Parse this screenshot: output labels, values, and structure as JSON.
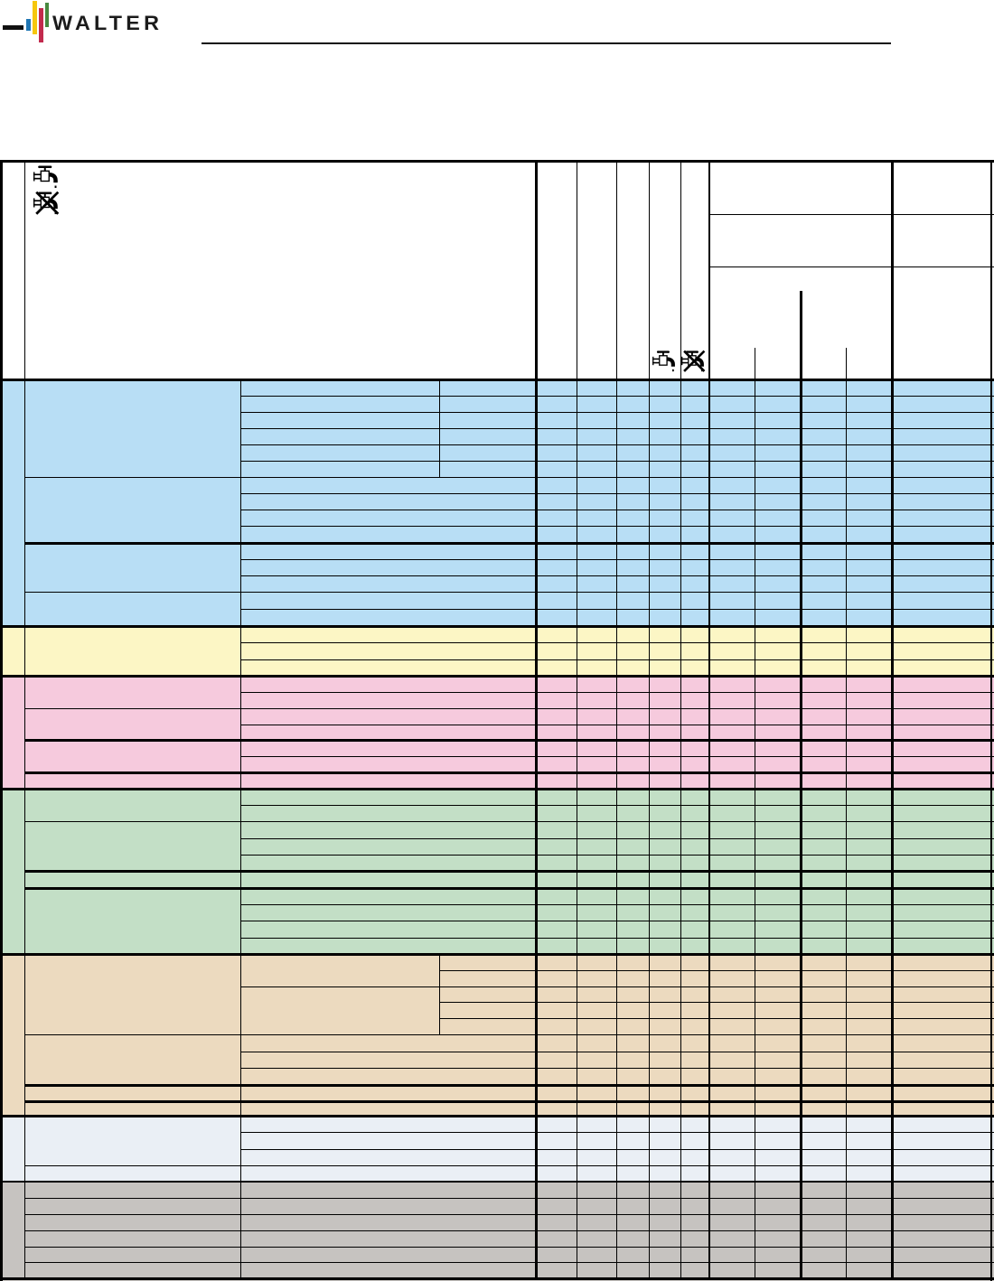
{
  "page": {
    "background": "#ffffff"
  },
  "logo": {
    "wordmark": "WALTER",
    "text_color": "#1b1b1b",
    "dash_color": "#111111",
    "bars": [
      {
        "name": "blue",
        "color": "#2076b4"
      },
      {
        "name": "yellow",
        "color": "#f6c70e"
      },
      {
        "name": "red",
        "color": "#c22a4d"
      },
      {
        "name": "green",
        "color": "#48883f"
      }
    ]
  },
  "divider_rule": {
    "color": "#111111"
  },
  "header": {
    "coolant_wet_icon": "faucet",
    "coolant_dry_icon": "faucet-crossed"
  },
  "table": {
    "grid_color": "#000000",
    "header_background": "#ffffff",
    "sections": [
      {
        "name": "blue",
        "color": "#b8def5",
        "rows": 15
      },
      {
        "name": "yellow",
        "color": "#fcf6c5",
        "rows": 3
      },
      {
        "name": "pink",
        "color": "#f6cadd",
        "rows": 7
      },
      {
        "name": "green",
        "color": "#c3dfc6",
        "rows": 10
      },
      {
        "name": "tan",
        "color": "#ecdabf",
        "rows": 10
      },
      {
        "name": "pale-blue",
        "color": "#eaeff5",
        "rows": 4
      },
      {
        "name": "gray",
        "color": "#c6c3c0",
        "rows": 6
      }
    ]
  }
}
